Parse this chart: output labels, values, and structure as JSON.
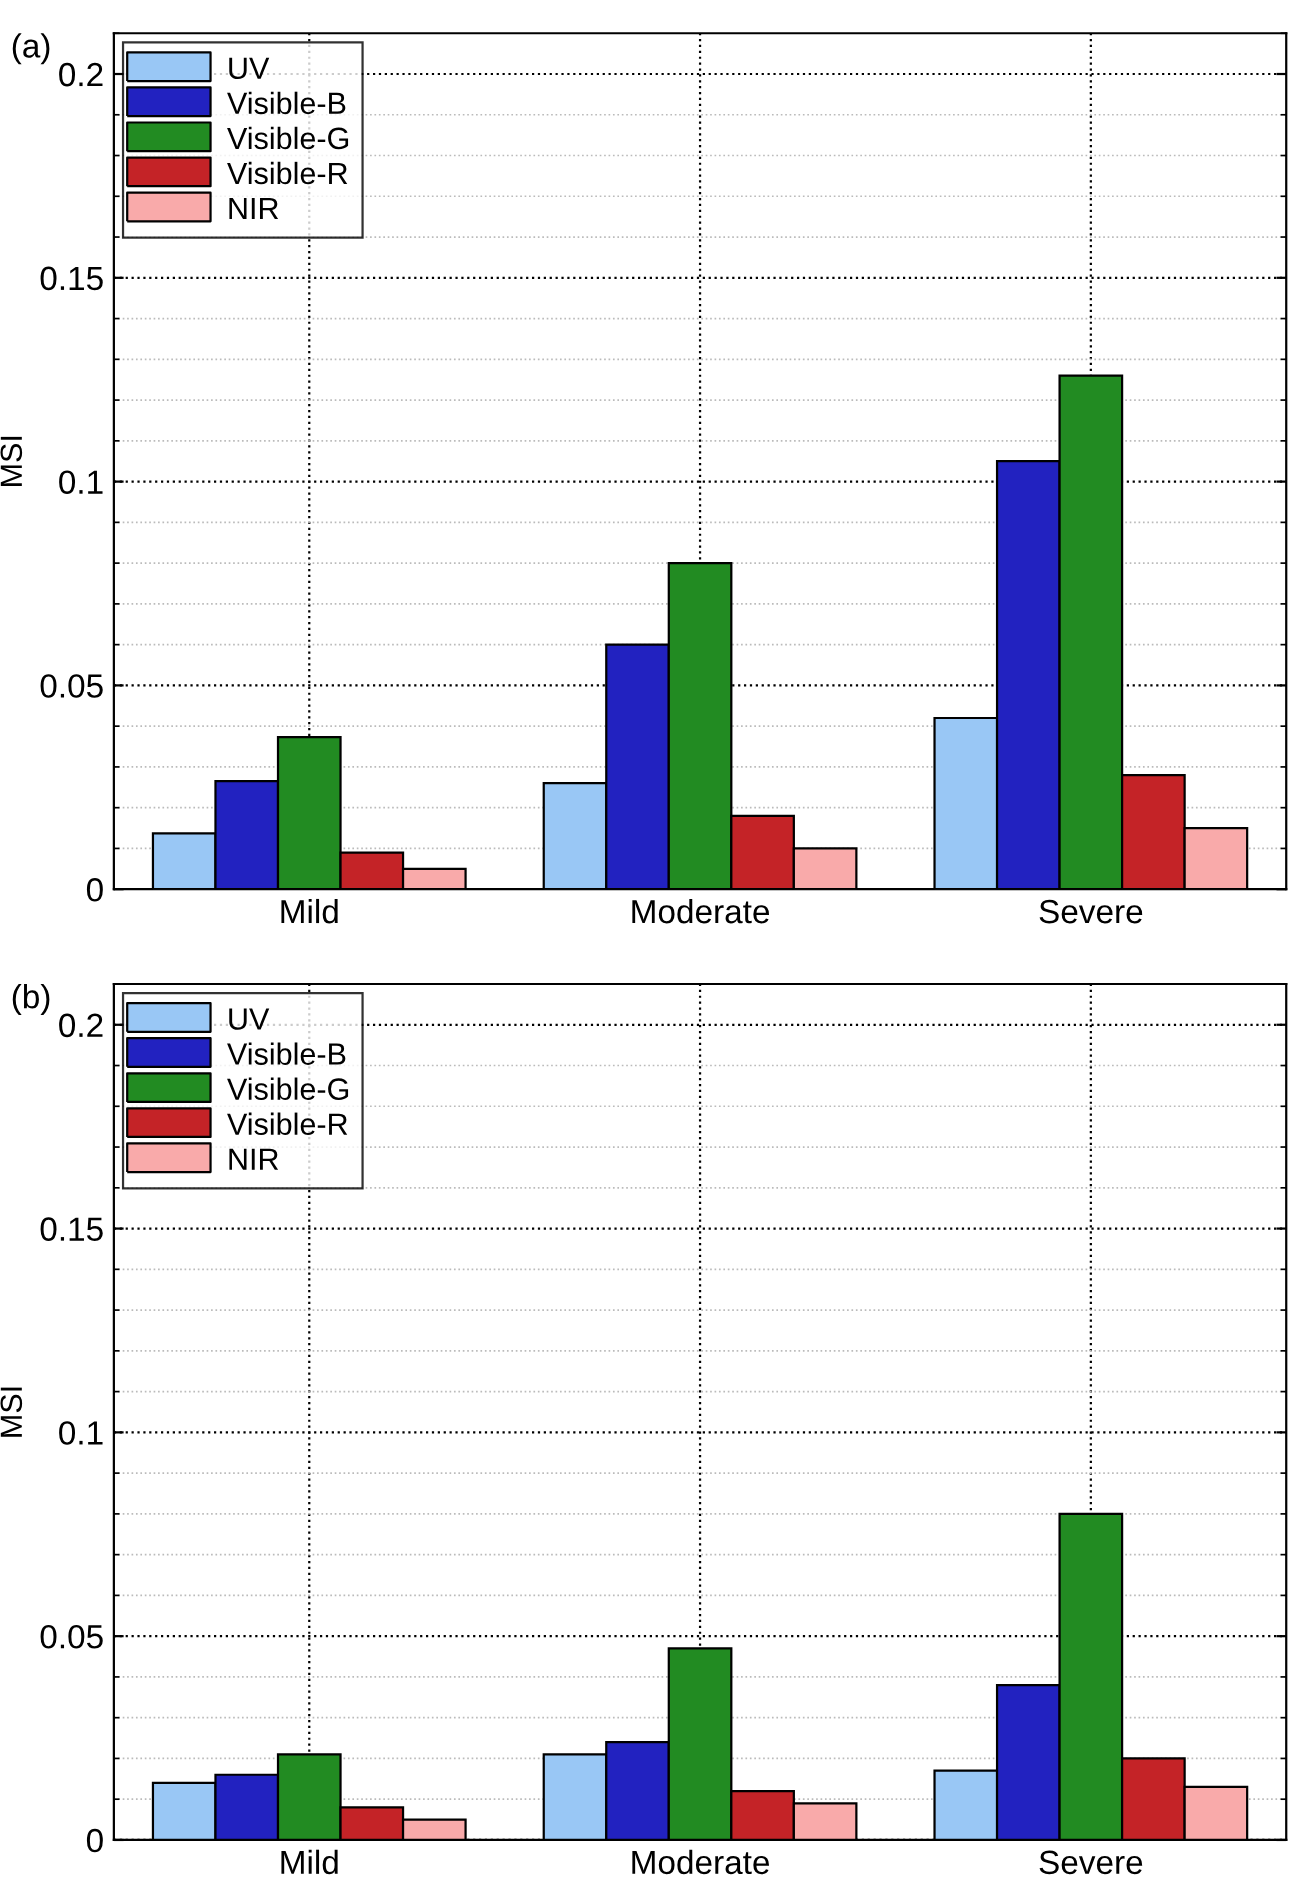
{
  "chart_data": [
    {
      "type": "bar",
      "title": "(a)",
      "ylabel": "MSI",
      "categories": [
        "Mild",
        "Moderate",
        "Severe"
      ],
      "ylim": [
        0,
        0.21
      ],
      "yticks": [
        0,
        0.05,
        0.1,
        0.15,
        0.2
      ],
      "grid": true,
      "legend": "top left",
      "series": [
        {
          "name": "UV",
          "color": "#99c7f5",
          "values": [
            0.0137,
            0.026,
            0.042
          ]
        },
        {
          "name": "Visible-B",
          "color": "#2222c0",
          "values": [
            0.0265,
            0.06,
            0.105
          ]
        },
        {
          "name": "Visible-G",
          "color": "#228b22",
          "values": [
            0.0373,
            0.08,
            0.126
          ]
        },
        {
          "name": "Visible-R",
          "color": "#c42327",
          "values": [
            0.009,
            0.018,
            0.028
          ]
        },
        {
          "name": "NIR",
          "color": "#f9aaaa",
          "values": [
            0.005,
            0.01,
            0.015
          ]
        }
      ]
    },
    {
      "type": "bar",
      "title": "(b)",
      "ylabel": "MSI",
      "categories": [
        "Mild",
        "Moderate",
        "Severe"
      ],
      "ylim": [
        0,
        0.21
      ],
      "yticks": [
        0,
        0.05,
        0.1,
        0.15,
        0.2
      ],
      "grid": true,
      "legend": "top left",
      "series": [
        {
          "name": "UV",
          "color": "#99c7f5",
          "values": [
            0.014,
            0.021,
            0.017
          ]
        },
        {
          "name": "Visible-B",
          "color": "#2222c0",
          "values": [
            0.016,
            0.024,
            0.038
          ]
        },
        {
          "name": "Visible-G",
          "color": "#228b22",
          "values": [
            0.021,
            0.047,
            0.08
          ]
        },
        {
          "name": "Visible-R",
          "color": "#c42327",
          "values": [
            0.008,
            0.012,
            0.02
          ]
        },
        {
          "name": "NIR",
          "color": "#f9aaaa",
          "values": [
            0.005,
            0.009,
            0.013
          ]
        }
      ]
    }
  ]
}
